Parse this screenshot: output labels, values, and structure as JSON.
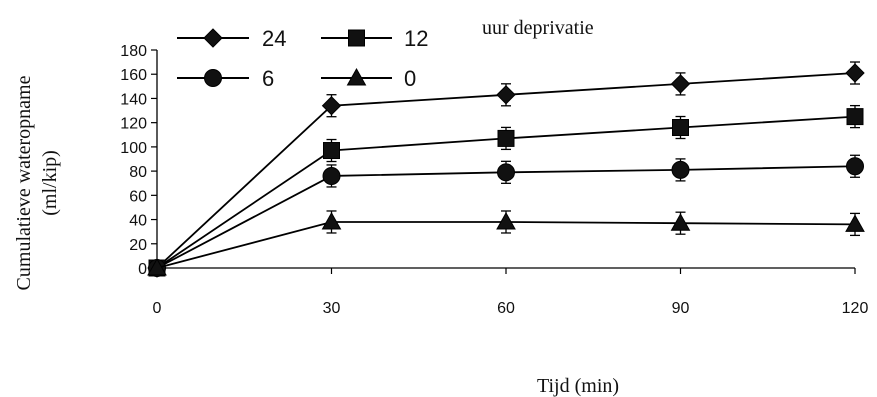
{
  "chart_data": {
    "type": "line",
    "title": "",
    "legend_title": "uur deprivatie",
    "xlabel": "Tijd (min)",
    "ylabel_line1": "Cumulatieve wateropname",
    "ylabel_line2": "(ml/kip)",
    "x": [
      0,
      30,
      60,
      90,
      120
    ],
    "xlim": [
      0,
      120
    ],
    "ylim": [
      0,
      180
    ],
    "x_ticks": [
      0,
      30,
      60,
      90,
      120
    ],
    "y_ticks": [
      0,
      20,
      40,
      60,
      80,
      100,
      120,
      140,
      160,
      180
    ],
    "grid": false,
    "legend_position": "top-left",
    "series": [
      {
        "name": "24",
        "marker": "diamond",
        "values": [
          0,
          134,
          143,
          152,
          161
        ]
      },
      {
        "name": "12",
        "marker": "square",
        "values": [
          0,
          97,
          107,
          116,
          125
        ]
      },
      {
        "name": "6",
        "marker": "circle",
        "values": [
          0,
          76,
          79,
          81,
          84
        ]
      },
      {
        "name": "0",
        "marker": "triangle",
        "values": [
          0,
          38,
          38,
          37,
          36
        ]
      }
    ],
    "line_color": "#000000"
  }
}
